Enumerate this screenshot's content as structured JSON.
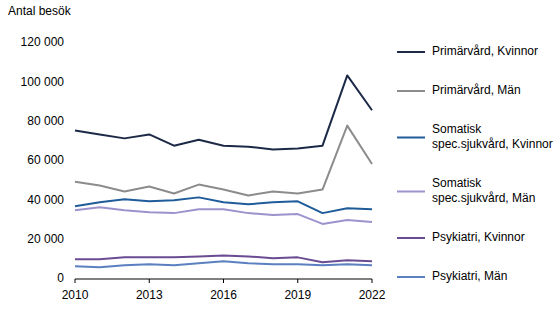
{
  "chart_data": {
    "type": "line",
    "y_label": "Antal besök",
    "x": [
      2010,
      2011,
      2012,
      2013,
      2014,
      2015,
      2016,
      2017,
      2018,
      2019,
      2020,
      2021,
      2022
    ],
    "xlim": [
      2010,
      2022
    ],
    "xticks": [
      2010,
      2013,
      2016,
      2019,
      2022
    ],
    "ylim": [
      0,
      120000
    ],
    "yticks": [
      0,
      {
        "value": 20000,
        "label": "20 000"
      },
      {
        "value": 40000,
        "label": "40 000"
      },
      {
        "value": 60000,
        "label": "60 000"
      },
      {
        "value": 80000,
        "label": "80 000"
      },
      {
        "value": 100000,
        "label": "100 000"
      },
      {
        "value": 120000,
        "label": "120 000"
      }
    ],
    "grid": false,
    "legend": "right",
    "series": [
      {
        "name": "Primärvård, Kvinnor",
        "color": "#1c2a47",
        "values": [
          75500,
          73500,
          71500,
          73500,
          67800,
          70800,
          67800,
          67300,
          65800,
          66300,
          67800,
          103500,
          85800
        ]
      },
      {
        "name": "Primärvård, Män",
        "color": "#8c8c8c",
        "values": [
          49500,
          47500,
          44500,
          47000,
          43500,
          48000,
          45500,
          42500,
          44500,
          43500,
          45500,
          78000,
          58500
        ]
      },
      {
        "name": "Somatisk spec.sjukvård, Kvinnor",
        "color": "#1f5c99",
        "values": [
          37000,
          39000,
          40500,
          39500,
          40000,
          41500,
          39000,
          38000,
          39000,
          39500,
          33500,
          36000,
          35500
        ]
      },
      {
        "name": "Somatisk spec.sjukvård, Män",
        "color": "#9d92cc",
        "values": [
          35000,
          36500,
          35000,
          34000,
          33500,
          35500,
          35500,
          33500,
          32500,
          33000,
          28000,
          30000,
          29000
        ]
      },
      {
        "name": "Psykiatri, Kvinnor",
        "color": "#6a4c92",
        "values": [
          10000,
          10000,
          11000,
          11000,
          11000,
          11500,
          12000,
          11500,
          10500,
          11000,
          8500,
          9500,
          9000
        ]
      },
      {
        "name": "Psykiatri, Män",
        "color": "#5b80c0",
        "values": [
          6500,
          6000,
          7000,
          7500,
          7000,
          8000,
          9000,
          8000,
          7500,
          7500,
          7000,
          7500,
          7000
        ]
      }
    ]
  }
}
